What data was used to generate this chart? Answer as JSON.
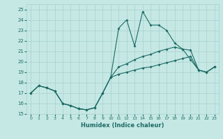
{
  "xlabel": "Humidex (Indice chaleur)",
  "xlim": [
    -0.5,
    23.5
  ],
  "ylim": [
    15,
    25.5
  ],
  "yticks": [
    15,
    16,
    17,
    18,
    19,
    20,
    21,
    22,
    23,
    24,
    25
  ],
  "xticks": [
    0,
    1,
    2,
    3,
    4,
    5,
    6,
    7,
    8,
    9,
    10,
    11,
    12,
    13,
    14,
    15,
    16,
    17,
    18,
    19,
    20,
    21,
    22,
    23
  ],
  "bg_color": "#c5e8e5",
  "grid_color": "#a8d0cc",
  "line_color": "#1e6b65",
  "line1_y": [
    17.0,
    17.7,
    17.5,
    17.2,
    16.0,
    15.8,
    15.5,
    15.4,
    15.6,
    17.0,
    18.5,
    23.2,
    24.0,
    21.5,
    24.8,
    23.5,
    23.5,
    23.0,
    21.8,
    21.2,
    20.2,
    19.2,
    19.0,
    19.5
  ],
  "line2_y": [
    17.0,
    17.7,
    17.5,
    17.2,
    16.0,
    15.8,
    15.5,
    15.4,
    15.6,
    17.0,
    18.5,
    19.5,
    19.8,
    20.2,
    20.5,
    20.7,
    21.0,
    21.2,
    21.4,
    21.2,
    21.1,
    19.2,
    19.0,
    19.5
  ],
  "line3_y": [
    17.0,
    17.7,
    17.5,
    17.2,
    16.0,
    15.8,
    15.5,
    15.4,
    15.6,
    17.0,
    18.5,
    18.8,
    19.0,
    19.2,
    19.4,
    19.5,
    19.7,
    19.9,
    20.1,
    20.3,
    20.5,
    19.2,
    19.0,
    19.5
  ]
}
